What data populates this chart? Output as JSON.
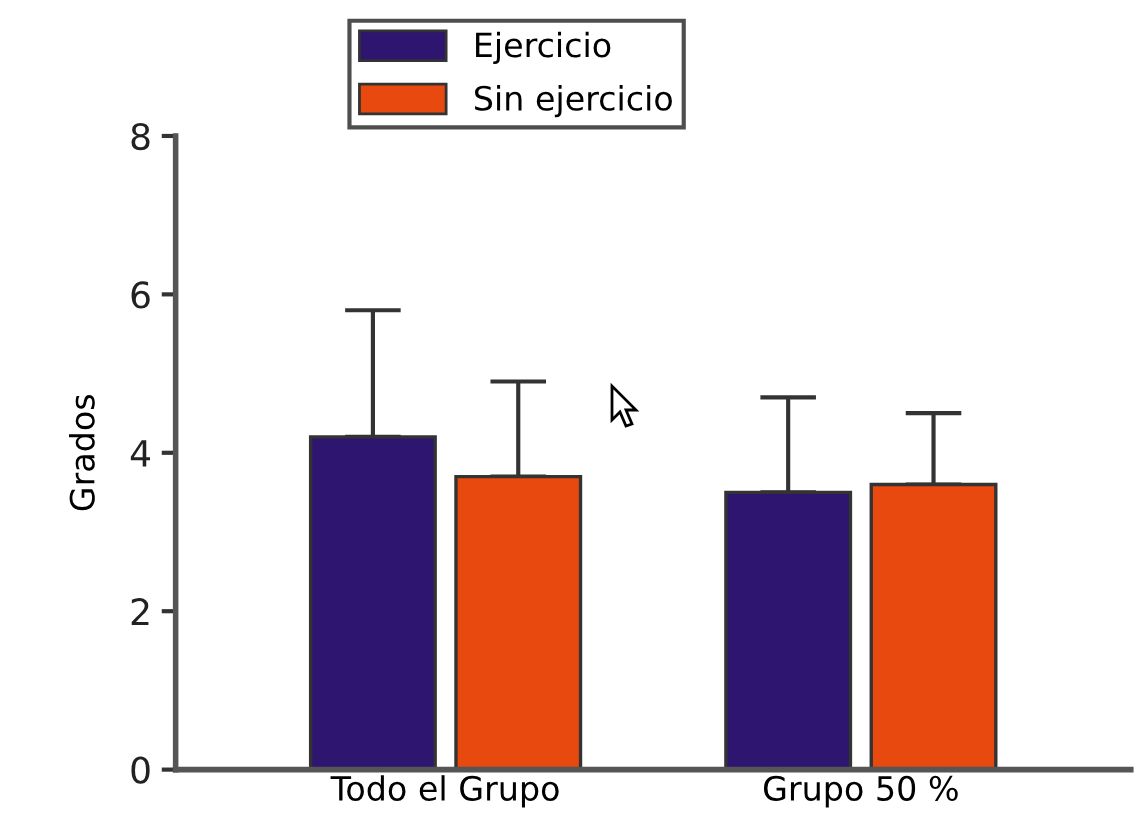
{
  "chart_data": {
    "type": "bar",
    "ylabel": "Grados",
    "categories": [
      "Todo el Grupo",
      "Grupo 50 %"
    ],
    "series": [
      {
        "name": "Ejercicio",
        "color": "#2e1570",
        "values": [
          4.2,
          3.5
        ],
        "errors": [
          [
            4.2,
            5.8
          ],
          [
            3.5,
            4.7
          ]
        ]
      },
      {
        "name": "Sin ejercicio",
        "color": "#e8490f",
        "values": [
          3.7,
          3.6
        ],
        "errors": [
          [
            3.7,
            4.9
          ],
          [
            3.6,
            4.5
          ]
        ]
      }
    ],
    "ylim": [
      0,
      8
    ],
    "yticks": [
      0,
      2,
      4,
      6,
      8
    ],
    "grid": false,
    "legend": "top"
  }
}
